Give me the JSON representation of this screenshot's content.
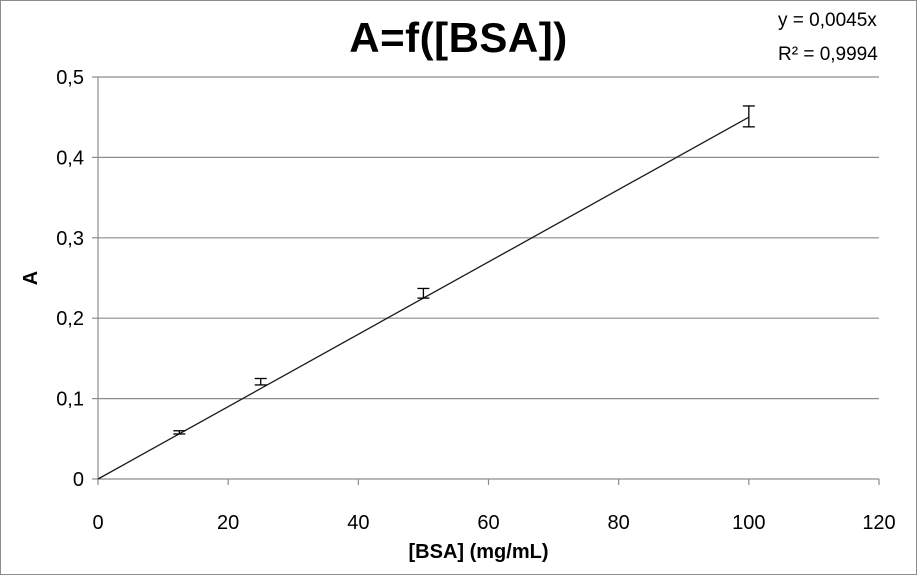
{
  "chart_data": {
    "type": "scatter",
    "title": "A=f([BSA])",
    "xlabel": "[BSA] (mg/mL)",
    "ylabel": "A",
    "xlim": [
      0,
      120
    ],
    "ylim": [
      0,
      0.5
    ],
    "x_ticks": [
      "0",
      "20",
      "40",
      "60",
      "80",
      "100",
      "120"
    ],
    "y_ticks": [
      "0",
      "0,1",
      "0,2",
      "0,3",
      "0,4",
      "0,5"
    ],
    "grid": "horizontal",
    "x_tick_values": [
      0,
      20,
      40,
      60,
      80,
      100,
      120
    ],
    "y_tick_values": [
      0,
      0.1,
      0.2,
      0.3,
      0.4,
      0.5
    ],
    "series": [
      {
        "x": [
          12.5,
          25,
          50,
          100
        ],
        "y": [
          0.058,
          0.121,
          0.231,
          0.451
        ],
        "error": [
          0.002,
          0.004,
          0.006,
          0.013
        ]
      }
    ],
    "trendline": {
      "type": "linear",
      "slope": 0.0045,
      "intercept": 0,
      "x_range": [
        0,
        100
      ],
      "equation": "y = 0,0045x",
      "r_squared": "R² = 0,9994"
    }
  }
}
